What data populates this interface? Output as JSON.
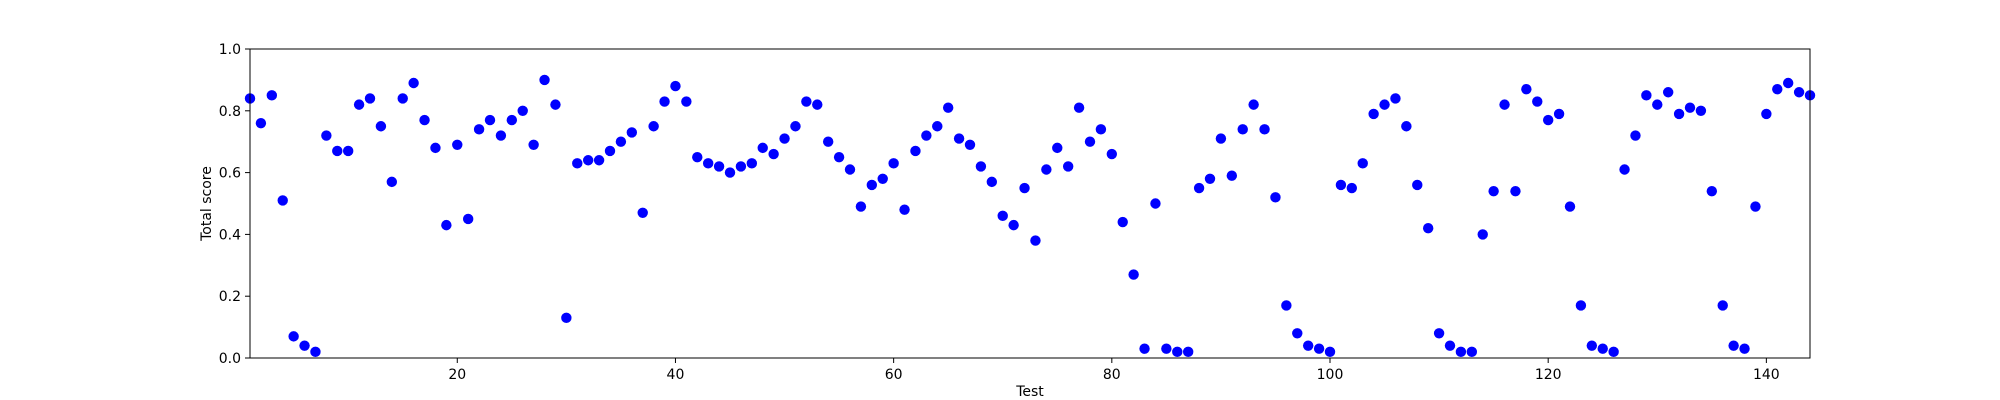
{
  "chart_data": {
    "type": "scatter",
    "xlabel": "Test",
    "ylabel": "Total score",
    "xlim": [
      1,
      144
    ],
    "ylim": [
      0.0,
      1.0
    ],
    "x_ticks": [
      20,
      40,
      60,
      80,
      100,
      120,
      140
    ],
    "y_ticks": [
      0.0,
      0.2,
      0.4,
      0.6,
      0.8,
      1.0
    ],
    "x_tick_labels": [
      "20",
      "40",
      "60",
      "80",
      "100",
      "120",
      "140"
    ],
    "y_tick_labels": [
      "0.0",
      "0.2",
      "0.4",
      "0.6",
      "0.8",
      "1.0"
    ],
    "grid": false,
    "point_color": "#0000ff",
    "series": [
      {
        "x": [
          1,
          2,
          3,
          4,
          5,
          6,
          7,
          8,
          9,
          10,
          11,
          12,
          13,
          14,
          15,
          16,
          17,
          18,
          19,
          20,
          21,
          22,
          23,
          24,
          25,
          26,
          27,
          28,
          29,
          30,
          31,
          32,
          33,
          34,
          35,
          36,
          37,
          38,
          39,
          40,
          41,
          42,
          43,
          44,
          45,
          46,
          47,
          48,
          49,
          50,
          51,
          52,
          53,
          54,
          55,
          56,
          57,
          58,
          59,
          60,
          61,
          62,
          63,
          64,
          65,
          66,
          67,
          68,
          69,
          70,
          71,
          72,
          73,
          74,
          75,
          76,
          77,
          78,
          79,
          80,
          81,
          82,
          83,
          84,
          85,
          86,
          87,
          88,
          89,
          90,
          91,
          92,
          93,
          94,
          95,
          96,
          97,
          98,
          99,
          100,
          101,
          102,
          103,
          104,
          105,
          106,
          107,
          108,
          109,
          110,
          111,
          112,
          113,
          114,
          115,
          116,
          117,
          118,
          119,
          120,
          121,
          122,
          123,
          124,
          125,
          126,
          127,
          128,
          129,
          130,
          131,
          132,
          133,
          134,
          135,
          136,
          137,
          138,
          139,
          140,
          141,
          142,
          143,
          144
        ],
        "y": [
          0.84,
          0.76,
          0.85,
          0.51,
          0.07,
          0.04,
          0.02,
          0.72,
          0.67,
          0.67,
          0.82,
          0.84,
          0.75,
          0.57,
          0.84,
          0.89,
          0.77,
          0.68,
          0.43,
          0.69,
          0.45,
          0.74,
          0.77,
          0.72,
          0.77,
          0.8,
          0.69,
          0.9,
          0.82,
          0.13,
          0.63,
          0.64,
          0.64,
          0.67,
          0.7,
          0.73,
          0.47,
          0.75,
          0.83,
          0.88,
          0.83,
          0.65,
          0.63,
          0.62,
          0.6,
          0.62,
          0.63,
          0.68,
          0.66,
          0.71,
          0.75,
          0.83,
          0.82,
          0.7,
          0.65,
          0.61,
          0.49,
          0.56,
          0.58,
          0.63,
          0.48,
          0.67,
          0.72,
          0.75,
          0.81,
          0.71,
          0.69,
          0.62,
          0.57,
          0.46,
          0.43,
          0.55,
          0.38,
          0.61,
          0.68,
          0.62,
          0.81,
          0.7,
          0.74,
          0.66,
          0.44,
          0.27,
          0.03,
          0.5,
          0.03,
          0.02,
          0.02,
          0.55,
          0.58,
          0.71,
          0.59,
          0.74,
          0.82,
          0.74,
          0.52,
          0.17,
          0.08,
          0.04,
          0.03,
          0.02,
          0.56,
          0.55,
          0.63,
          0.79,
          0.82,
          0.84,
          0.75,
          0.56,
          0.42,
          0.08,
          0.04,
          0.02,
          0.02,
          0.4,
          0.54,
          0.82,
          0.54,
          0.87,
          0.83,
          0.77,
          0.79,
          0.49,
          0.17,
          0.04,
          0.03,
          0.02,
          0.61,
          0.72,
          0.85,
          0.82,
          0.86,
          0.79,
          0.81,
          0.8,
          0.54,
          0.17,
          0.04,
          0.03,
          0.49,
          0.79,
          0.87,
          0.89,
          0.86,
          0.85
        ]
      }
    ]
  }
}
